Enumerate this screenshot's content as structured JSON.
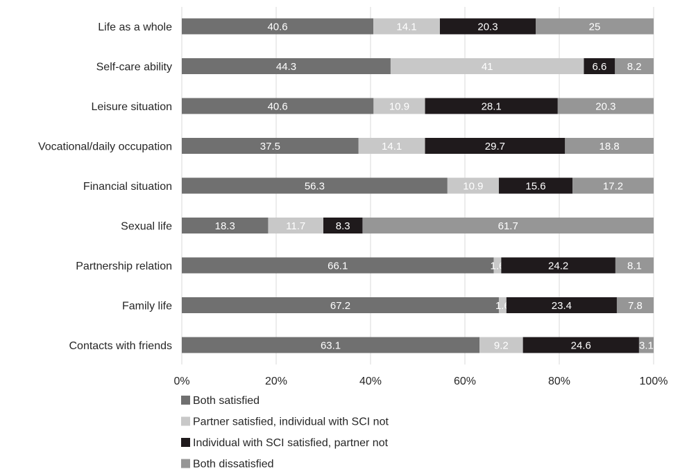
{
  "chart_data": {
    "type": "bar",
    "orientation": "horizontal",
    "stacked": "percent",
    "categories": [
      "Life as a whole",
      "Self-care ability",
      "Leisure situation",
      "Vocational/daily occupation",
      "Financial situation",
      "Sexual life",
      "Partnership relation",
      "Family life",
      "Contacts with friends"
    ],
    "series": [
      {
        "name": "Both satisfied",
        "color": "#707070",
        "values": [
          40.6,
          44.3,
          40.6,
          37.5,
          56.3,
          18.3,
          66.1,
          67.2,
          63.1
        ]
      },
      {
        "name": "Partner satisfied, individual with SCI not",
        "color": "#c8c8c8",
        "values": [
          14.1,
          41,
          10.9,
          14.1,
          10.9,
          11.7,
          1.6,
          1.6,
          9.2
        ]
      },
      {
        "name": "Individual with SCI satisfied, partner not",
        "color": "#1f1a1c",
        "values": [
          20.3,
          6.6,
          28.1,
          29.7,
          15.6,
          8.3,
          24.2,
          23.4,
          24.6
        ]
      },
      {
        "name": "Both dissatisfied",
        "color": "#969696",
        "values": [
          25,
          8.2,
          20.3,
          18.8,
          17.2,
          61.7,
          8.1,
          7.8,
          3.1
        ]
      }
    ],
    "x_ticks": [
      "0%",
      "20%",
      "40%",
      "60%",
      "80%",
      "100%"
    ],
    "xlim": [
      0,
      100
    ],
    "grid": true,
    "legend_position": "bottom",
    "title": "",
    "xlabel": "",
    "ylabel": ""
  }
}
